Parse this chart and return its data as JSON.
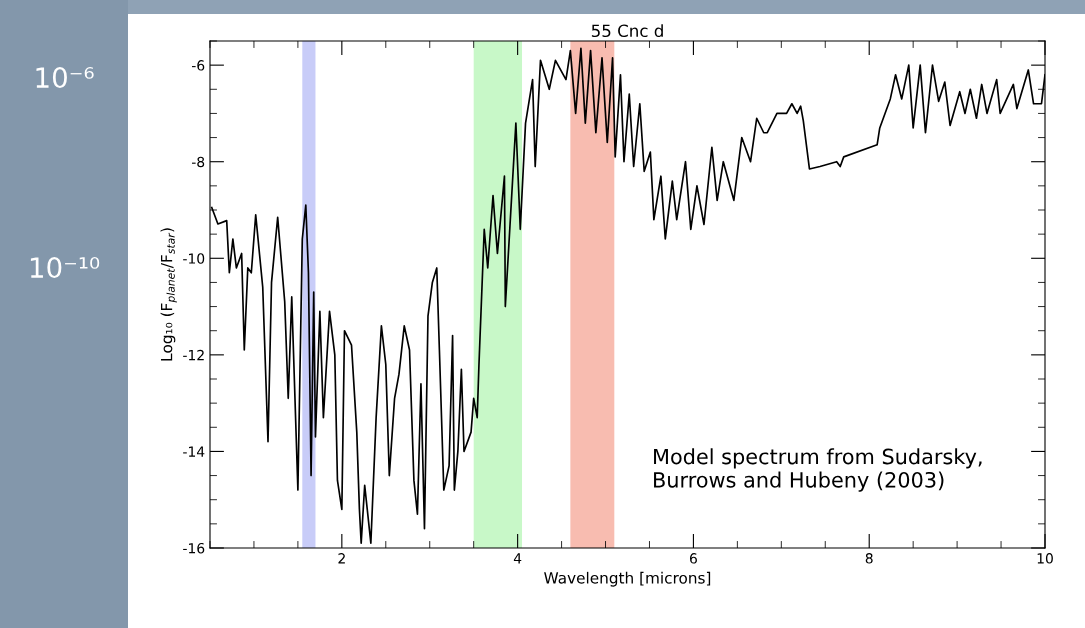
{
  "chart_data": {
    "type": "line",
    "title": "55 Cnc d",
    "xlabel": "Wavelength [microns]",
    "ylabel": "Log₁₀ (F$_{planet}$/F$_{star}$)",
    "annotations": [
      "10⁻⁶",
      "10⁻¹⁰",
      "Model spectrum from Sudarsky,\nBurrows and Hubeny (2003)"
    ],
    "xlim": [
      0.5,
      10
    ],
    "ylim": [
      -16,
      -5.5
    ],
    "xticks": [
      2,
      4,
      6,
      8,
      10
    ],
    "yticks": [
      -16,
      -14,
      -12,
      -10,
      -8,
      -6
    ],
    "grid": false,
    "legend": false,
    "marker": "none",
    "line_style": "solid",
    "bands": [
      {
        "axis": "x",
        "from": 1.55,
        "to": 1.7,
        "color": "#c8ccf8"
      },
      {
        "axis": "x",
        "from": 3.5,
        "to": 4.05,
        "color": "#c8f8c8"
      },
      {
        "axis": "x",
        "from": 4.6,
        "to": 5.1,
        "color": "#f8bcb0"
      }
    ],
    "series": [
      {
        "color": "#000000",
        "x": [
          0.52,
          0.59,
          0.69,
          0.72,
          0.76,
          0.8,
          0.86,
          0.89,
          0.93,
          0.97,
          1.02,
          1.1,
          1.16,
          1.2,
          1.27,
          1.35,
          1.39,
          1.43,
          1.5,
          1.55,
          1.59,
          1.62,
          1.65,
          1.68,
          1.7,
          1.75,
          1.79,
          1.86,
          1.92,
          1.95,
          2.0,
          2.03,
          2.11,
          2.17,
          2.2,
          2.22,
          2.26,
          2.33,
          2.39,
          2.45,
          2.5,
          2.54,
          2.6,
          2.65,
          2.71,
          2.77,
          2.82,
          2.86,
          2.9,
          2.94,
          2.98,
          3.03,
          3.08,
          3.11,
          3.16,
          3.22,
          3.26,
          3.28,
          3.32,
          3.36,
          3.39,
          3.47,
          3.5,
          3.54,
          3.56,
          3.62,
          3.66,
          3.72,
          3.77,
          3.85,
          3.86,
          3.98,
          4.03,
          4.09,
          4.17,
          4.2,
          4.26,
          4.36,
          4.43,
          4.55,
          4.6,
          4.66,
          4.72,
          4.77,
          4.83,
          4.89,
          4.96,
          5.02,
          5.08,
          5.11,
          5.17,
          5.21,
          5.27,
          5.32,
          5.39,
          5.44,
          5.51,
          5.55,
          5.63,
          5.68,
          5.76,
          5.81,
          5.91,
          5.97,
          6.04,
          6.12,
          6.21,
          6.27,
          6.34,
          6.46,
          6.55,
          6.65,
          6.72,
          6.8,
          6.84,
          6.95,
          7.06,
          7.12,
          7.18,
          7.22,
          7.25,
          7.32,
          7.44,
          7.63,
          7.67,
          7.71,
          8.09,
          8.12,
          8.18,
          8.24,
          8.3,
          8.37,
          8.45,
          8.5,
          8.58,
          8.64,
          8.72,
          8.79,
          8.86,
          8.92,
          9.03,
          9.09,
          9.15,
          9.22,
          9.28,
          9.34,
          9.45,
          9.49,
          9.64,
          9.68,
          9.81,
          9.87,
          9.96,
          10.0
        ],
        "values": [
          -8.95,
          -9.29,
          -9.22,
          -10.3,
          -9.6,
          -10.2,
          -9.9,
          -11.9,
          -10.2,
          -10.3,
          -9.1,
          -10.6,
          -13.8,
          -10.5,
          -9.15,
          -10.9,
          -12.9,
          -10.8,
          -14.8,
          -9.6,
          -8.9,
          -10.3,
          -14.5,
          -10.7,
          -13.7,
          -11.1,
          -13.3,
          -11.1,
          -12.0,
          -14.6,
          -15.2,
          -11.5,
          -11.8,
          -13.6,
          -15.2,
          -15.9,
          -14.7,
          -15.9,
          -13.3,
          -11.4,
          -12.2,
          -14.5,
          -12.9,
          -12.4,
          -11.4,
          -11.9,
          -14.6,
          -15.3,
          -12.6,
          -15.6,
          -11.2,
          -10.5,
          -10.2,
          -11.9,
          -14.8,
          -14.3,
          -11.6,
          -14.8,
          -14.0,
          -12.3,
          -14.0,
          -13.6,
          -12.9,
          -13.3,
          -12.2,
          -9.4,
          -10.2,
          -8.7,
          -9.9,
          -8.3,
          -11.0,
          -7.2,
          -9.4,
          -7.2,
          -6.3,
          -8.1,
          -5.9,
          -6.5,
          -5.9,
          -6.3,
          -5.7,
          -7.0,
          -5.65,
          -7.2,
          -5.7,
          -7.4,
          -5.85,
          -7.6,
          -5.85,
          -7.9,
          -6.2,
          -8.0,
          -6.6,
          -8.1,
          -6.8,
          -8.2,
          -7.8,
          -9.2,
          -8.3,
          -9.6,
          -8.4,
          -9.2,
          -8.0,
          -9.4,
          -8.5,
          -9.3,
          -7.7,
          -8.8,
          -8.0,
          -8.8,
          -7.5,
          -8.0,
          -7.1,
          -7.4,
          -7.4,
          -7.0,
          -7.0,
          -6.8,
          -7.0,
          -6.85,
          -7.15,
          -8.15,
          -8.1,
          -8.0,
          -8.1,
          -7.9,
          -7.65,
          -7.3,
          -7.0,
          -6.7,
          -6.2,
          -6.7,
          -6.0,
          -7.3,
          -6.0,
          -7.4,
          -6.0,
          -6.75,
          -6.35,
          -7.25,
          -6.55,
          -7.0,
          -6.5,
          -7.1,
          -6.4,
          -7.0,
          -6.3,
          -7.0,
          -6.4,
          -6.9,
          -6.1,
          -6.8,
          -6.8,
          -6.2
        ]
      }
    ]
  }
}
